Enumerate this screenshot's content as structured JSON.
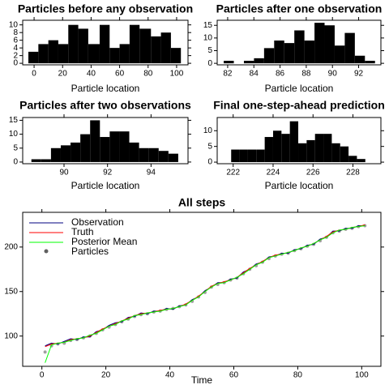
{
  "chart_data": [
    {
      "type": "histogram",
      "title": "Particles before any observation",
      "x_label": "Particle location",
      "color": "#000000",
      "bins": [
        -4,
        3,
        10,
        17,
        24,
        31,
        38,
        46,
        53,
        60,
        67,
        74,
        82,
        89,
        96,
        103
      ],
      "values": [
        3,
        5,
        6,
        5,
        10,
        9,
        5,
        10,
        4,
        5,
        10,
        9,
        7,
        8,
        4
      ],
      "xlim": [
        -8,
        108
      ],
      "xticks": [
        0,
        20,
        40,
        60,
        80,
        100
      ],
      "ylim": [
        -0.4,
        11.2
      ],
      "yticks": [
        0,
        2,
        4,
        6,
        8,
        10
      ]
    },
    {
      "type": "histogram",
      "title": "Particles after one observation",
      "x_label": "Particle location",
      "color": "#000000",
      "bins": [
        81.7,
        82.47,
        83.24,
        84.01,
        84.78,
        85.55,
        86.32,
        87.09,
        87.86,
        88.63,
        89.4,
        90.17,
        90.94,
        91.71,
        92.48,
        93.25
      ],
      "values": [
        1,
        0,
        1,
        2,
        6,
        9,
        8,
        13,
        9,
        16,
        15,
        7,
        12,
        3,
        1
      ],
      "xlim": [
        81.2,
        93.7
      ],
      "xticks": [
        82,
        84,
        86,
        88,
        90,
        92
      ],
      "ylim": [
        -0.6,
        17
      ],
      "yticks": [
        0,
        5,
        10,
        15
      ]
    },
    {
      "type": "histogram",
      "title": "Particles after two observations",
      "x_label": "Particle location",
      "color": "#000000",
      "bins": [
        88.5,
        88.95,
        89.4,
        89.85,
        90.3,
        90.75,
        91.2,
        91.65,
        92.1,
        92.55,
        93,
        93.45,
        93.9,
        94.35,
        94.8,
        95.25
      ],
      "values": [
        1,
        1,
        5,
        6,
        7,
        10,
        15,
        9,
        11,
        11,
        7,
        5,
        5,
        4,
        3
      ],
      "xlim": [
        88.1,
        95.7
      ],
      "xticks": [
        90,
        92,
        94
      ],
      "ylim": [
        -0.6,
        16
      ],
      "yticks": [
        0,
        5,
        10,
        15
      ]
    },
    {
      "type": "histogram",
      "title": "Final one-step-ahead prediction",
      "x_label": "Particle location",
      "color": "#000000",
      "bins": [
        221.9,
        222.32,
        222.74,
        223.16,
        223.58,
        224,
        224.42,
        224.84,
        225.26,
        225.68,
        226.1,
        226.52,
        226.94,
        227.36,
        227.78,
        228.2,
        228.62
      ],
      "values": [
        4,
        4,
        4,
        4,
        8,
        10,
        9,
        13,
        6,
        7,
        9,
        9,
        6,
        5,
        2,
        1
      ],
      "xlim": [
        221.2,
        229.4
      ],
      "xticks": [
        222,
        224,
        226,
        228
      ],
      "ylim": [
        -0.5,
        14.2
      ],
      "yticks": [
        0,
        5,
        10
      ]
    },
    {
      "type": "line",
      "title": "All steps",
      "x_label": "Time",
      "x": [
        1,
        3,
        5,
        7,
        9,
        11,
        13,
        15,
        17,
        19,
        21,
        23,
        25,
        27,
        29,
        31,
        33,
        35,
        37,
        39,
        41,
        43,
        45,
        47,
        49,
        51,
        53,
        55,
        57,
        59,
        61,
        63,
        65,
        67,
        69,
        71,
        73,
        75,
        77,
        79,
        81,
        83,
        85,
        87,
        89,
        91,
        93,
        95,
        97,
        99,
        101
      ],
      "series": [
        {
          "name": "Observation",
          "color": "#000080",
          "style": "line",
          "values": [
            89,
            92,
            91,
            94,
            97,
            96,
            99,
            99,
            105,
            107,
            112,
            115,
            116,
            121,
            122,
            126,
            125,
            128,
            128,
            131,
            130,
            134,
            135,
            141,
            144,
            151,
            155,
            160,
            160,
            164,
            165,
            172,
            175,
            181,
            183,
            189,
            190,
            193,
            193,
            197,
            198,
            202,
            203,
            209,
            211,
            218,
            218,
            221,
            221,
            224,
            224
          ]
        },
        {
          "name": "Truth",
          "color": "#ff0000",
          "style": "line",
          "values": [
            88,
            91,
            92,
            93,
            96,
            97,
            98,
            100,
            104,
            108,
            111,
            114,
            117,
            120,
            123,
            125,
            126,
            127,
            129,
            130,
            131,
            133,
            136,
            140,
            145,
            150,
            156,
            159,
            161,
            163,
            166,
            171,
            176,
            180,
            184,
            188,
            191,
            192,
            194,
            196,
            199,
            201,
            204,
            208,
            212,
            217,
            219,
            220,
            222,
            223,
            225
          ]
        },
        {
          "name": "Posterior Mean",
          "color": "#00ff00",
          "style": "line",
          "values": [
            70,
            90,
            92,
            93,
            95,
            97,
            98,
            101,
            103,
            107,
            111,
            113,
            117,
            119,
            123,
            124,
            126,
            127,
            128,
            130,
            131,
            133,
            135,
            140,
            144,
            150,
            155,
            159,
            160,
            163,
            166,
            170,
            175,
            180,
            183,
            188,
            190,
            192,
            194,
            196,
            199,
            201,
            204,
            208,
            211,
            216,
            219,
            220,
            222,
            223,
            224
          ]
        },
        {
          "name": "Particles",
          "color": "#606060",
          "style": "points",
          "values": [
            82,
            89,
            91,
            92,
            95,
            96,
            98,
            100,
            103,
            107,
            110,
            113,
            116,
            119,
            122,
            124,
            125,
            127,
            128,
            130,
            131,
            133,
            135,
            139,
            144,
            149,
            155,
            158,
            160,
            163,
            165,
            170,
            175,
            179,
            183,
            187,
            190,
            192,
            193,
            196,
            198,
            201,
            203,
            207,
            211,
            216,
            218,
            220,
            221,
            223,
            224
          ]
        }
      ],
      "xlim": [
        -6,
        106
      ],
      "xticks": [
        0,
        20,
        40,
        60,
        80,
        100
      ],
      "ylim": [
        66,
        239
      ],
      "yticks": [
        100,
        150,
        200
      ]
    }
  ]
}
